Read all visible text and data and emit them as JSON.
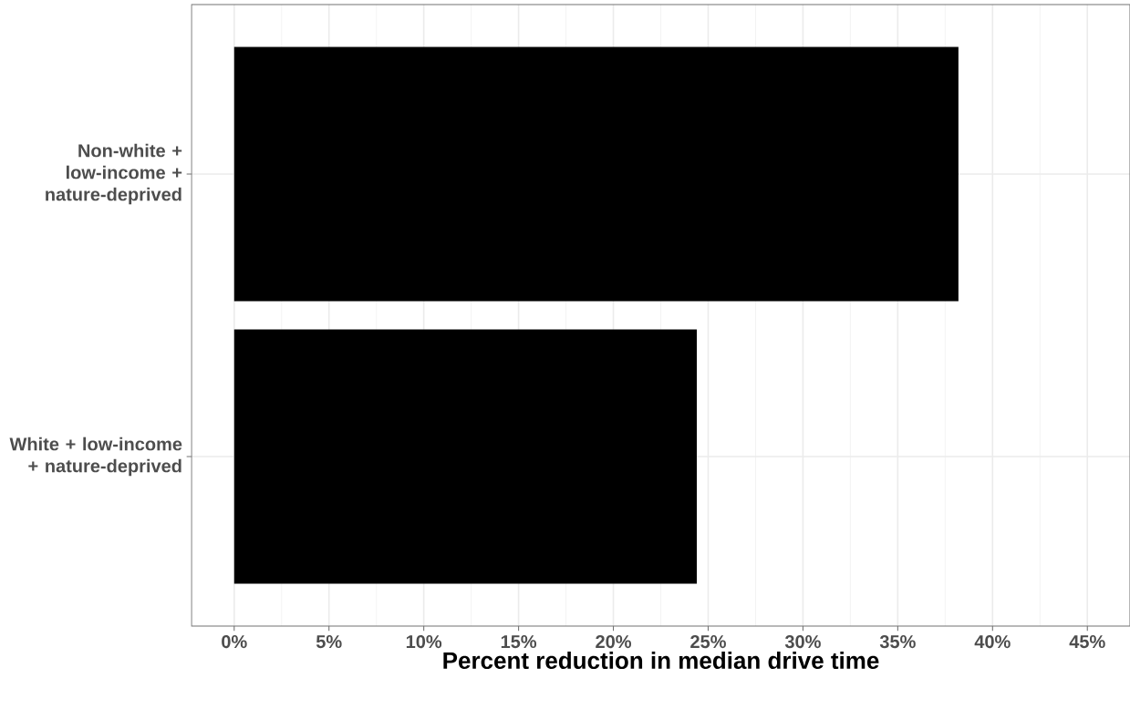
{
  "chart_data": {
    "type": "bar",
    "orientation": "horizontal",
    "xlabel": "Percent reduction in median drive time",
    "categories": [
      "Non-white + low-income + nature-deprived",
      "White + low-income + nature-deprived"
    ],
    "values": [
      38.2,
      24.4
    ],
    "color": "#000000",
    "xlim": [
      -2.25,
      47.25
    ],
    "xticks": [
      {
        "value": 0,
        "label": "0%"
      },
      {
        "value": 5,
        "label": "5%"
      },
      {
        "value": 10,
        "label": "10%"
      },
      {
        "value": 15,
        "label": "15%"
      },
      {
        "value": 20,
        "label": "20%"
      },
      {
        "value": 25,
        "label": "25%"
      },
      {
        "value": 30,
        "label": "30%"
      },
      {
        "value": 35,
        "label": "35%"
      },
      {
        "value": 40,
        "label": "40%"
      },
      {
        "value": 45,
        "label": "45%"
      }
    ],
    "grid": true
  }
}
